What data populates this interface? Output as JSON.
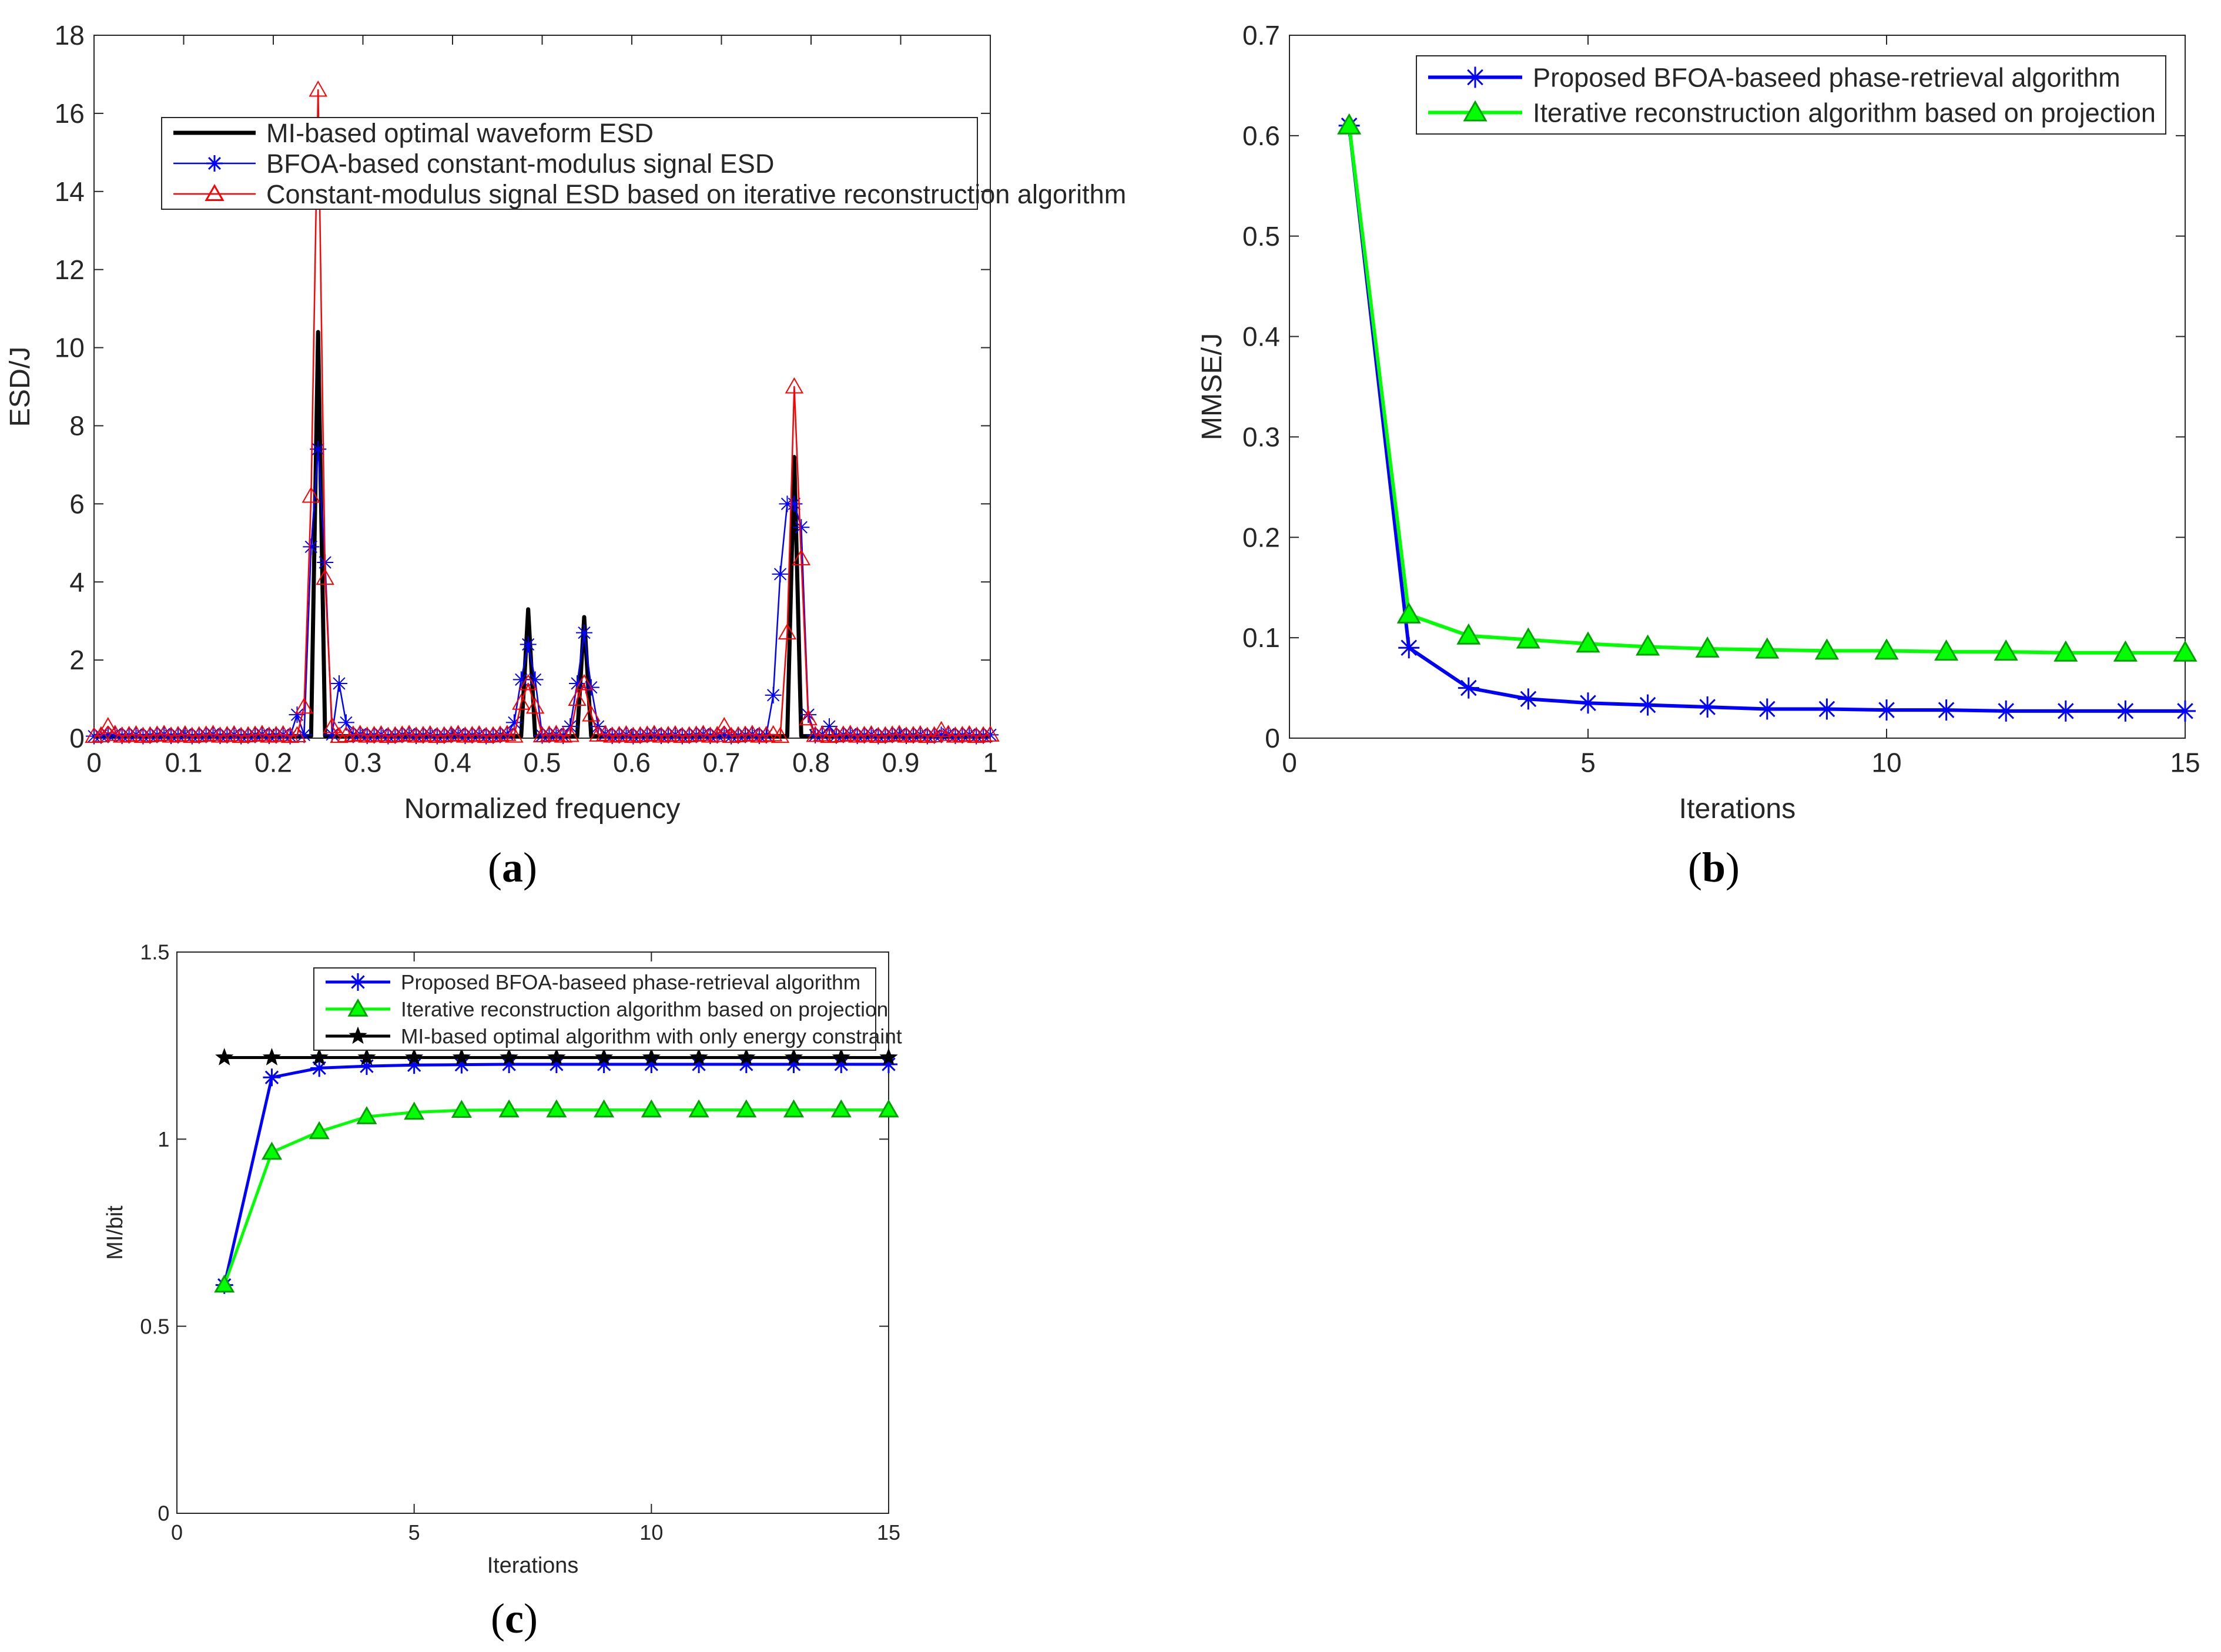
{
  "chart_data": [
    {
      "id": "a",
      "type": "line",
      "caption_letter": "a",
      "xlabel": "Normalized frequency",
      "ylabel": "ESD/J",
      "xlim": [
        0,
        1
      ],
      "ylim": [
        0,
        18
      ],
      "xticks": [
        "0",
        "0.1",
        "0.2",
        "0.3",
        "0.4",
        "0.5",
        "0.6",
        "0.7",
        "0.8",
        "0.9",
        "1"
      ],
      "yticks": [
        "0",
        "2",
        "4",
        "6",
        "8",
        "10",
        "12",
        "14",
        "16",
        "18"
      ],
      "legend_position": "top-right",
      "series": [
        {
          "name": "MI-based optimal waveform ESD",
          "color": "#000000",
          "marker": "none",
          "peaks": [
            [
              0.25,
              10.4
            ],
            [
              0.484,
              3.3
            ],
            [
              0.547,
              3.1
            ],
            [
              0.781,
              7.2
            ]
          ]
        },
        {
          "name": "BFOA-based constant-modulus signal ESD",
          "color": "#0000ff",
          "marker": "star",
          "peaks": [
            [
              0.23,
              0.6
            ],
            [
              0.242,
              4.9
            ],
            [
              0.25,
              7.4
            ],
            [
              0.258,
              4.5
            ],
            [
              0.273,
              1.4
            ],
            [
              0.281,
              0.4
            ],
            [
              0.469,
              0.4
            ],
            [
              0.477,
              1.5
            ],
            [
              0.484,
              2.4
            ],
            [
              0.492,
              1.5
            ],
            [
              0.531,
              0.3
            ],
            [
              0.539,
              1.4
            ],
            [
              0.547,
              2.7
            ],
            [
              0.555,
              1.3
            ],
            [
              0.563,
              0.3
            ],
            [
              0.758,
              1.1
            ],
            [
              0.766,
              4.2
            ],
            [
              0.773,
              6.0
            ],
            [
              0.781,
              6.0
            ],
            [
              0.789,
              5.4
            ],
            [
              0.797,
              0.6
            ],
            [
              0.82,
              0.3
            ]
          ]
        },
        {
          "name": "Constant-modulus signal ESD based on iterative reconstruction algorithm",
          "color": "#ff0000",
          "marker": "triangle",
          "peaks": [
            [
              0.015,
              0.3
            ],
            [
              0.234,
              0.8
            ],
            [
              0.242,
              6.2
            ],
            [
              0.25,
              16.6
            ],
            [
              0.258,
              4.1
            ],
            [
              0.266,
              0.3
            ],
            [
              0.477,
              0.9
            ],
            [
              0.484,
              1.4
            ],
            [
              0.492,
              0.8
            ],
            [
              0.539,
              1.0
            ],
            [
              0.547,
              1.4
            ],
            [
              0.555,
              0.6
            ],
            [
              0.703,
              0.3
            ],
            [
              0.773,
              2.7
            ],
            [
              0.781,
              9.0
            ],
            [
              0.789,
              4.6
            ],
            [
              0.797,
              0.5
            ],
            [
              0.945,
              0.2
            ]
          ]
        }
      ]
    },
    {
      "id": "b",
      "type": "line",
      "caption_letter": "b",
      "xlabel": "Iterations",
      "ylabel": "MMSE/J",
      "xlim": [
        0,
        15
      ],
      "ylim": [
        0,
        0.7
      ],
      "xticks": [
        "0",
        "5",
        "10",
        "15"
      ],
      "yticks": [
        "0",
        "0.1",
        "0.2",
        "0.3",
        "0.4",
        "0.5",
        "0.6",
        "0.7"
      ],
      "legend_position": "top-right",
      "x": [
        1,
        2,
        3,
        4,
        5,
        6,
        7,
        8,
        9,
        10,
        11,
        12,
        13,
        14,
        15
      ],
      "series": [
        {
          "name": "Proposed BFOA-baseed phase-retrieval algorithm",
          "color": "#0000ff",
          "marker": "star",
          "values": [
            0.61,
            0.09,
            0.05,
            0.039,
            0.035,
            0.033,
            0.031,
            0.029,
            0.029,
            0.028,
            0.028,
            0.027,
            0.027,
            0.027,
            0.027
          ]
        },
        {
          "name": "Iterative reconstruction algorithm based on projection",
          "color": "#00ff00",
          "marker": "triangle",
          "values": [
            0.61,
            0.123,
            0.102,
            0.098,
            0.094,
            0.091,
            0.089,
            0.088,
            0.087,
            0.087,
            0.086,
            0.086,
            0.085,
            0.085,
            0.085
          ]
        }
      ]
    },
    {
      "id": "c",
      "type": "line",
      "caption_letter": "c",
      "xlabel": "Iterations",
      "ylabel": "MI/bit",
      "xlim": [
        0,
        15
      ],
      "ylim": [
        0,
        1.5
      ],
      "xticks": [
        "0",
        "5",
        "10",
        "15"
      ],
      "yticks": [
        "0",
        "0.5",
        "1",
        "1.5"
      ],
      "legend_position": "top-right",
      "x": [
        1,
        2,
        3,
        4,
        5,
        6,
        7,
        8,
        9,
        10,
        11,
        12,
        13,
        14,
        15
      ],
      "series": [
        {
          "name": "Proposed BFOA-baseed phase-retrieval algorithm",
          "color": "#0000ff",
          "marker": "star",
          "values": [
            0.61,
            1.165,
            1.19,
            1.195,
            1.198,
            1.199,
            1.2,
            1.2,
            1.2,
            1.2,
            1.2,
            1.2,
            1.2,
            1.2,
            1.2
          ]
        },
        {
          "name": "Iterative reconstruction algorithm based on projection",
          "color": "#00ff00",
          "marker": "triangle",
          "values": [
            0.61,
            0.965,
            1.02,
            1.06,
            1.072,
            1.077,
            1.078,
            1.078,
            1.078,
            1.078,
            1.078,
            1.078,
            1.078,
            1.078,
            1.078
          ]
        },
        {
          "name": "MI-based optimal algorithm with only energy constraint",
          "color": "#000000",
          "marker": "pentagram",
          "values": [
            1.218,
            1.218,
            1.218,
            1.218,
            1.218,
            1.218,
            1.218,
            1.218,
            1.218,
            1.218,
            1.218,
            1.218,
            1.218,
            1.218,
            1.218
          ]
        }
      ]
    }
  ]
}
